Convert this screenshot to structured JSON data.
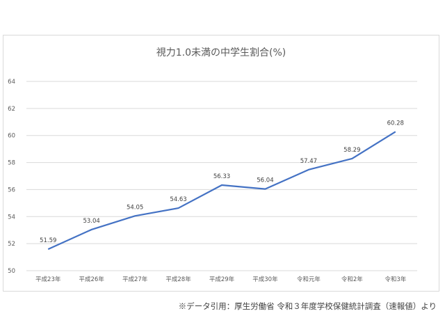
{
  "chart_data": {
    "type": "line",
    "title": "視力1.0未満の中学生割合(%)",
    "categories": [
      "平成23年",
      "平成26年",
      "平成27年",
      "平成28年",
      "平成29年",
      "平成30年",
      "令和元年",
      "令和2年",
      "令和3年"
    ],
    "series": [
      {
        "values": [
          51.59,
          53.04,
          54.05,
          54.63,
          56.33,
          56.04,
          57.47,
          58.29,
          60.28
        ]
      }
    ],
    "data_labels": [
      "51.59",
      "53.04",
      "54.05",
      "54.63",
      "56.33",
      "56.04",
      "57.47",
      "58.29",
      "60.28"
    ],
    "ylim": [
      50,
      64
    ],
    "yticks": [
      "50",
      "52",
      "54",
      "56",
      "58",
      "60",
      "62",
      "64"
    ],
    "grid": true,
    "legend": "none",
    "line_color": "#4472c4"
  },
  "source_note": "※データ引用：厚生労働省 令和３年度学校保健統計調査（速報値）より"
}
